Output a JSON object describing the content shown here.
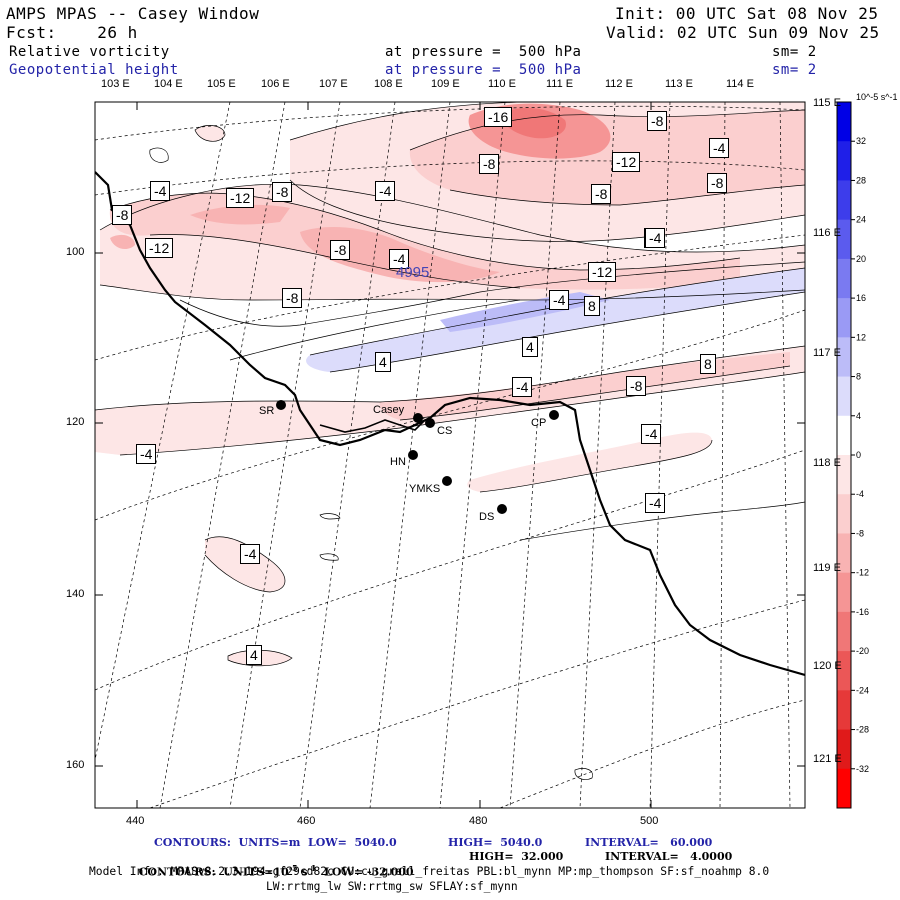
{
  "header": {
    "title": "AMPS MPAS -- Casey Window",
    "fcst": "Fcst:    26 h",
    "init": "Init: 00 UTC Sat 08 Nov 25",
    "valid": "Valid: 02 UTC Sun 09 Nov 25",
    "field1_name": "Relative vorticity",
    "field1_level": "at pressure =  500 hPa",
    "field1_sm": "sm= 2",
    "field2_name": "Geopotential height",
    "field2_level": "at pressure =  500 hPa",
    "field2_sm": "sm= 2"
  },
  "top_lon_labels": [
    "103 E",
    "104 E",
    "105 E",
    "106 E",
    "107 E",
    "108 E",
    "109 E",
    "110 E",
    "111 E",
    "112 E",
    "113 E",
    "114 E"
  ],
  "right_lon_labels": [
    "115 E",
    "116 E",
    "117 E",
    "118 E",
    "119 E",
    "120 E",
    "121 E"
  ],
  "left_axis_labels": [
    "100",
    "120",
    "140",
    "160"
  ],
  "bottom_axis_labels": [
    "440",
    "460",
    "480",
    "500"
  ],
  "stations": [
    {
      "name": "SR"
    },
    {
      "name": "Casey"
    },
    {
      "name": "CS"
    },
    {
      "name": "HN"
    },
    {
      "name": "YMKS"
    },
    {
      "name": "CP"
    },
    {
      "name": "DS"
    }
  ],
  "contour_labels": [
    {
      "text": "-16"
    },
    {
      "text": "-8"
    },
    {
      "text": "-4"
    },
    {
      "text": "-8"
    },
    {
      "text": "-12"
    },
    {
      "text": "-8"
    },
    {
      "text": "-8"
    },
    {
      "text": "-4"
    },
    {
      "text": "-8"
    },
    {
      "text": "-12"
    },
    {
      "text": "-8"
    },
    {
      "text": "-4"
    },
    {
      "text": "-8"
    },
    {
      "text": "-4"
    },
    {
      "text": "-12"
    },
    {
      "text": "-12"
    },
    {
      "text": "-8"
    },
    {
      "text": "-4"
    },
    {
      "text": "4"
    },
    {
      "text": "8"
    },
    {
      "text": "-4"
    },
    {
      "text": "4"
    },
    {
      "text": "8"
    },
    {
      "text": "-8"
    },
    {
      "text": "-4"
    },
    {
      "text": "-4"
    },
    {
      "text": "-4"
    },
    {
      "text": "-4"
    },
    {
      "text": "4"
    },
    {
      "text": "-4"
    },
    {
      "text": "-4"
    }
  ],
  "height_label": "4995",
  "colorbar": {
    "unit": "10^-5 s^-1",
    "ticks": [
      "32",
      "28",
      "24",
      "20",
      "16",
      "12",
      "8",
      "4",
      "0",
      "-4",
      "-8",
      "-12",
      "-16",
      "-20",
      "-24",
      "-28",
      "-32"
    ],
    "colors": [
      "#0000e6",
      "#1f1fe8",
      "#3d3deb",
      "#5b5bee",
      "#7a7af1",
      "#9a9af5",
      "#bcbcf8",
      "#dcdcfb",
      "#ffffff",
      "#fde6e6",
      "#fbcfcf",
      "#f8b3b3",
      "#f59595",
      "#f07777",
      "#eb5757",
      "#e63939",
      "#e01a1a",
      "#ff0000"
    ]
  },
  "footer": {
    "line1_a": "CONTOURS:  UNITS=m  LOW=  5040.0",
    "line1_b": "HIGH=  5040.0",
    "line1_c": "INTERVAL=   60.000",
    "line2_a": "CONTOURS:  UNITS=10",
    "line2_exp": "-5",
    "line2_b": " s",
    "line2_exp2": "-1",
    "line2_c": "  LOW= -32.000",
    "line2_d": "HIGH=  32.000",
    "line2_e": "INTERVAL=   4.0000",
    "line3": "Model Info: MPASv8.2.3-194-gf29cd82c CU:cu_grell_freitas PBL:bl_mynn MP:mp_thompson SF:sf_noahmp 8.0",
    "line4": "LW:rrtmg_lw SW:rrtmg_sw SFLAY:sf_mynn"
  }
}
